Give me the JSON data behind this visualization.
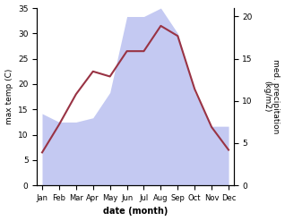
{
  "months": [
    "Jan",
    "Feb",
    "Mar",
    "Apr",
    "May",
    "Jun",
    "Jul",
    "Aug",
    "Sep",
    "Oct",
    "Nov",
    "Dec"
  ],
  "temp_max": [
    6.5,
    12.0,
    18.0,
    22.5,
    21.5,
    26.5,
    26.5,
    31.5,
    29.5,
    19.0,
    11.5,
    7.0
  ],
  "precip": [
    8.5,
    7.5,
    7.5,
    8.0,
    11.0,
    20.0,
    20.0,
    21.0,
    18.0,
    11.0,
    7.0,
    7.0
  ],
  "temp_color": "#993344",
  "precip_color": "#b0b8ee",
  "xlabel": "date (month)",
  "ylabel_left": "max temp (C)",
  "ylabel_right": "med. precipitation\n(kg/m2)",
  "ylim_left": [
    0,
    35
  ],
  "ylim_right": [
    0,
    21
  ],
  "yticks_left": [
    0,
    5,
    10,
    15,
    20,
    25,
    30,
    35
  ],
  "yticks_right": [
    0,
    5,
    10,
    15,
    20
  ],
  "bg_color": "#ffffff",
  "line_width": 1.5
}
